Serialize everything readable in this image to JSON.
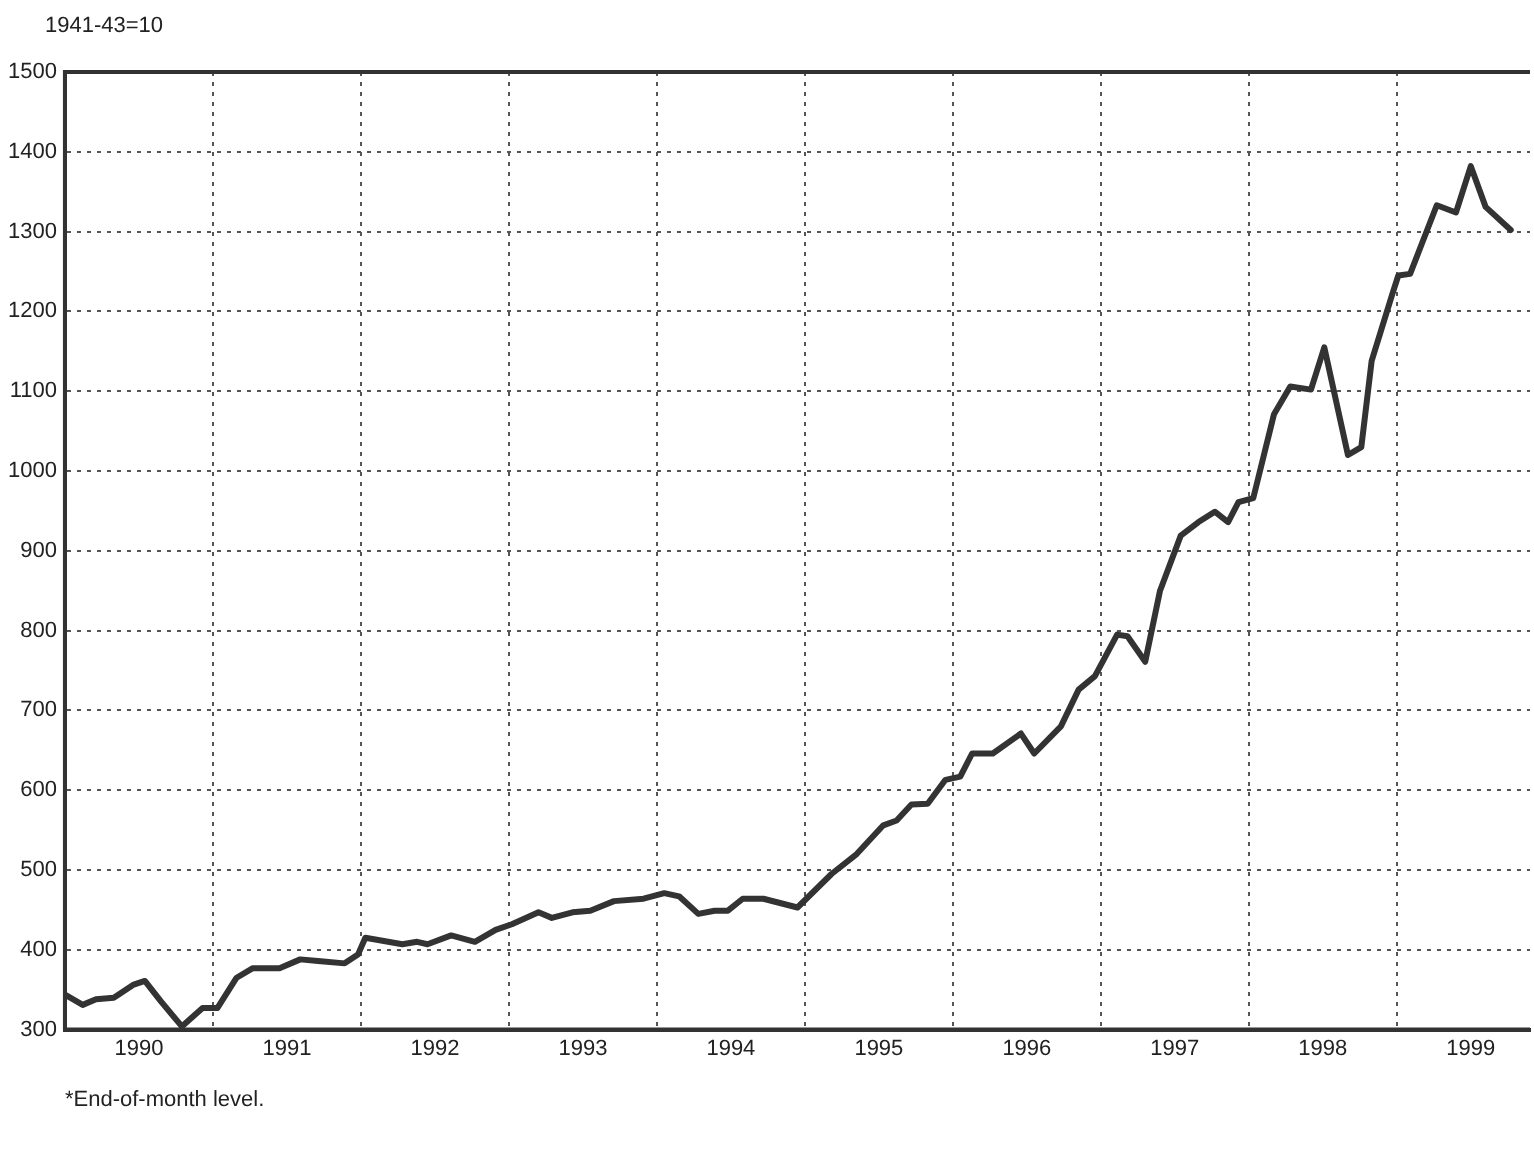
{
  "chart_data": {
    "type": "line",
    "ylabel": "1941-43=10",
    "annotations": [
      "*End-of-month level."
    ],
    "x": [
      1990.0,
      1990.12,
      1990.21,
      1990.33,
      1990.46,
      1990.54,
      1990.65,
      1990.79,
      1990.93,
      1991.03,
      1991.16,
      1991.27,
      1991.45,
      1991.59,
      1991.71,
      1991.89,
      1991.98,
      1992.03,
      1992.28,
      1992.38,
      1992.45,
      1992.61,
      1992.77,
      1992.91,
      1993.02,
      1993.2,
      1993.29,
      1993.43,
      1993.55,
      1993.71,
      1993.91,
      1994.05,
      1994.15,
      1994.28,
      1994.39,
      1994.48,
      1994.58,
      1994.72,
      1994.95,
      1995.18,
      1995.35,
      1995.53,
      1995.62,
      1995.72,
      1995.83,
      1995.95,
      1996.05,
      1996.13,
      1996.27,
      1996.46,
      1996.55,
      1996.73,
      1996.85,
      1996.96,
      1997.11,
      1997.18,
      1997.3,
      1997.4,
      1997.54,
      1997.66,
      1997.77,
      1997.86,
      1997.93,
      1998.03,
      1998.17,
      1998.28,
      1998.42,
      1998.51,
      1998.67,
      1998.76,
      1998.83,
      1998.97,
      1999.01,
      1999.09,
      1999.27,
      1999.4,
      1999.5,
      1999.6,
      1999.77
    ],
    "series": [
      {
        "color": "#333333",
        "values": [
          344,
          331,
          338,
          340,
          356,
          361,
          335,
          304,
          327,
          327,
          365,
          377,
          377,
          388,
          386,
          383,
          394,
          415,
          407,
          410,
          407,
          418,
          410,
          425,
          432,
          447,
          440,
          447,
          449,
          461,
          464,
          471,
          467,
          445,
          449,
          449,
          464,
          464,
          453,
          495,
          520,
          556,
          562,
          582,
          583,
          613,
          617,
          646,
          646,
          671,
          646,
          680,
          726,
          743,
          795,
          793,
          761,
          850,
          919,
          936,
          949,
          936,
          961,
          966,
          1071,
          1106,
          1102,
          1155,
          1020,
          1030,
          1138,
          1222,
          1245,
          1247,
          1333,
          1324,
          1382,
          1331,
          1302
        ]
      }
    ],
    "xlim": [
      1990,
      1999.9
    ],
    "xticks": [
      {
        "value": 1991,
        "label": null
      },
      {
        "value": 1992,
        "label": null
      },
      {
        "value": 1993,
        "label": null
      },
      {
        "value": 1994,
        "label": null
      },
      {
        "value": 1995,
        "label": null
      },
      {
        "value": 1996,
        "label": null
      },
      {
        "value": 1997,
        "label": null
      },
      {
        "value": 1998,
        "label": null
      },
      {
        "value": 1999,
        "label": null
      },
      {
        "value": 1990.5,
        "label": "1990"
      },
      {
        "value": 1991.5,
        "label": "1991"
      },
      {
        "value": 1992.5,
        "label": "1992"
      },
      {
        "value": 1993.5,
        "label": "1993"
      },
      {
        "value": 1994.5,
        "label": "1994"
      },
      {
        "value": 1995.5,
        "label": "1995"
      },
      {
        "value": 1996.5,
        "label": "1996"
      },
      {
        "value": 1997.5,
        "label": "1997"
      },
      {
        "value": 1998.5,
        "label": "1998"
      },
      {
        "value": 1999.5,
        "label": "1999"
      }
    ],
    "ylim": [
      300,
      1500
    ],
    "yticks": [
      300,
      400,
      500,
      600,
      700,
      800,
      900,
      1000,
      1100,
      1200,
      1300,
      1400,
      1500
    ],
    "grid": true,
    "legend": false,
    "marker": "none",
    "line_style": "solid"
  }
}
